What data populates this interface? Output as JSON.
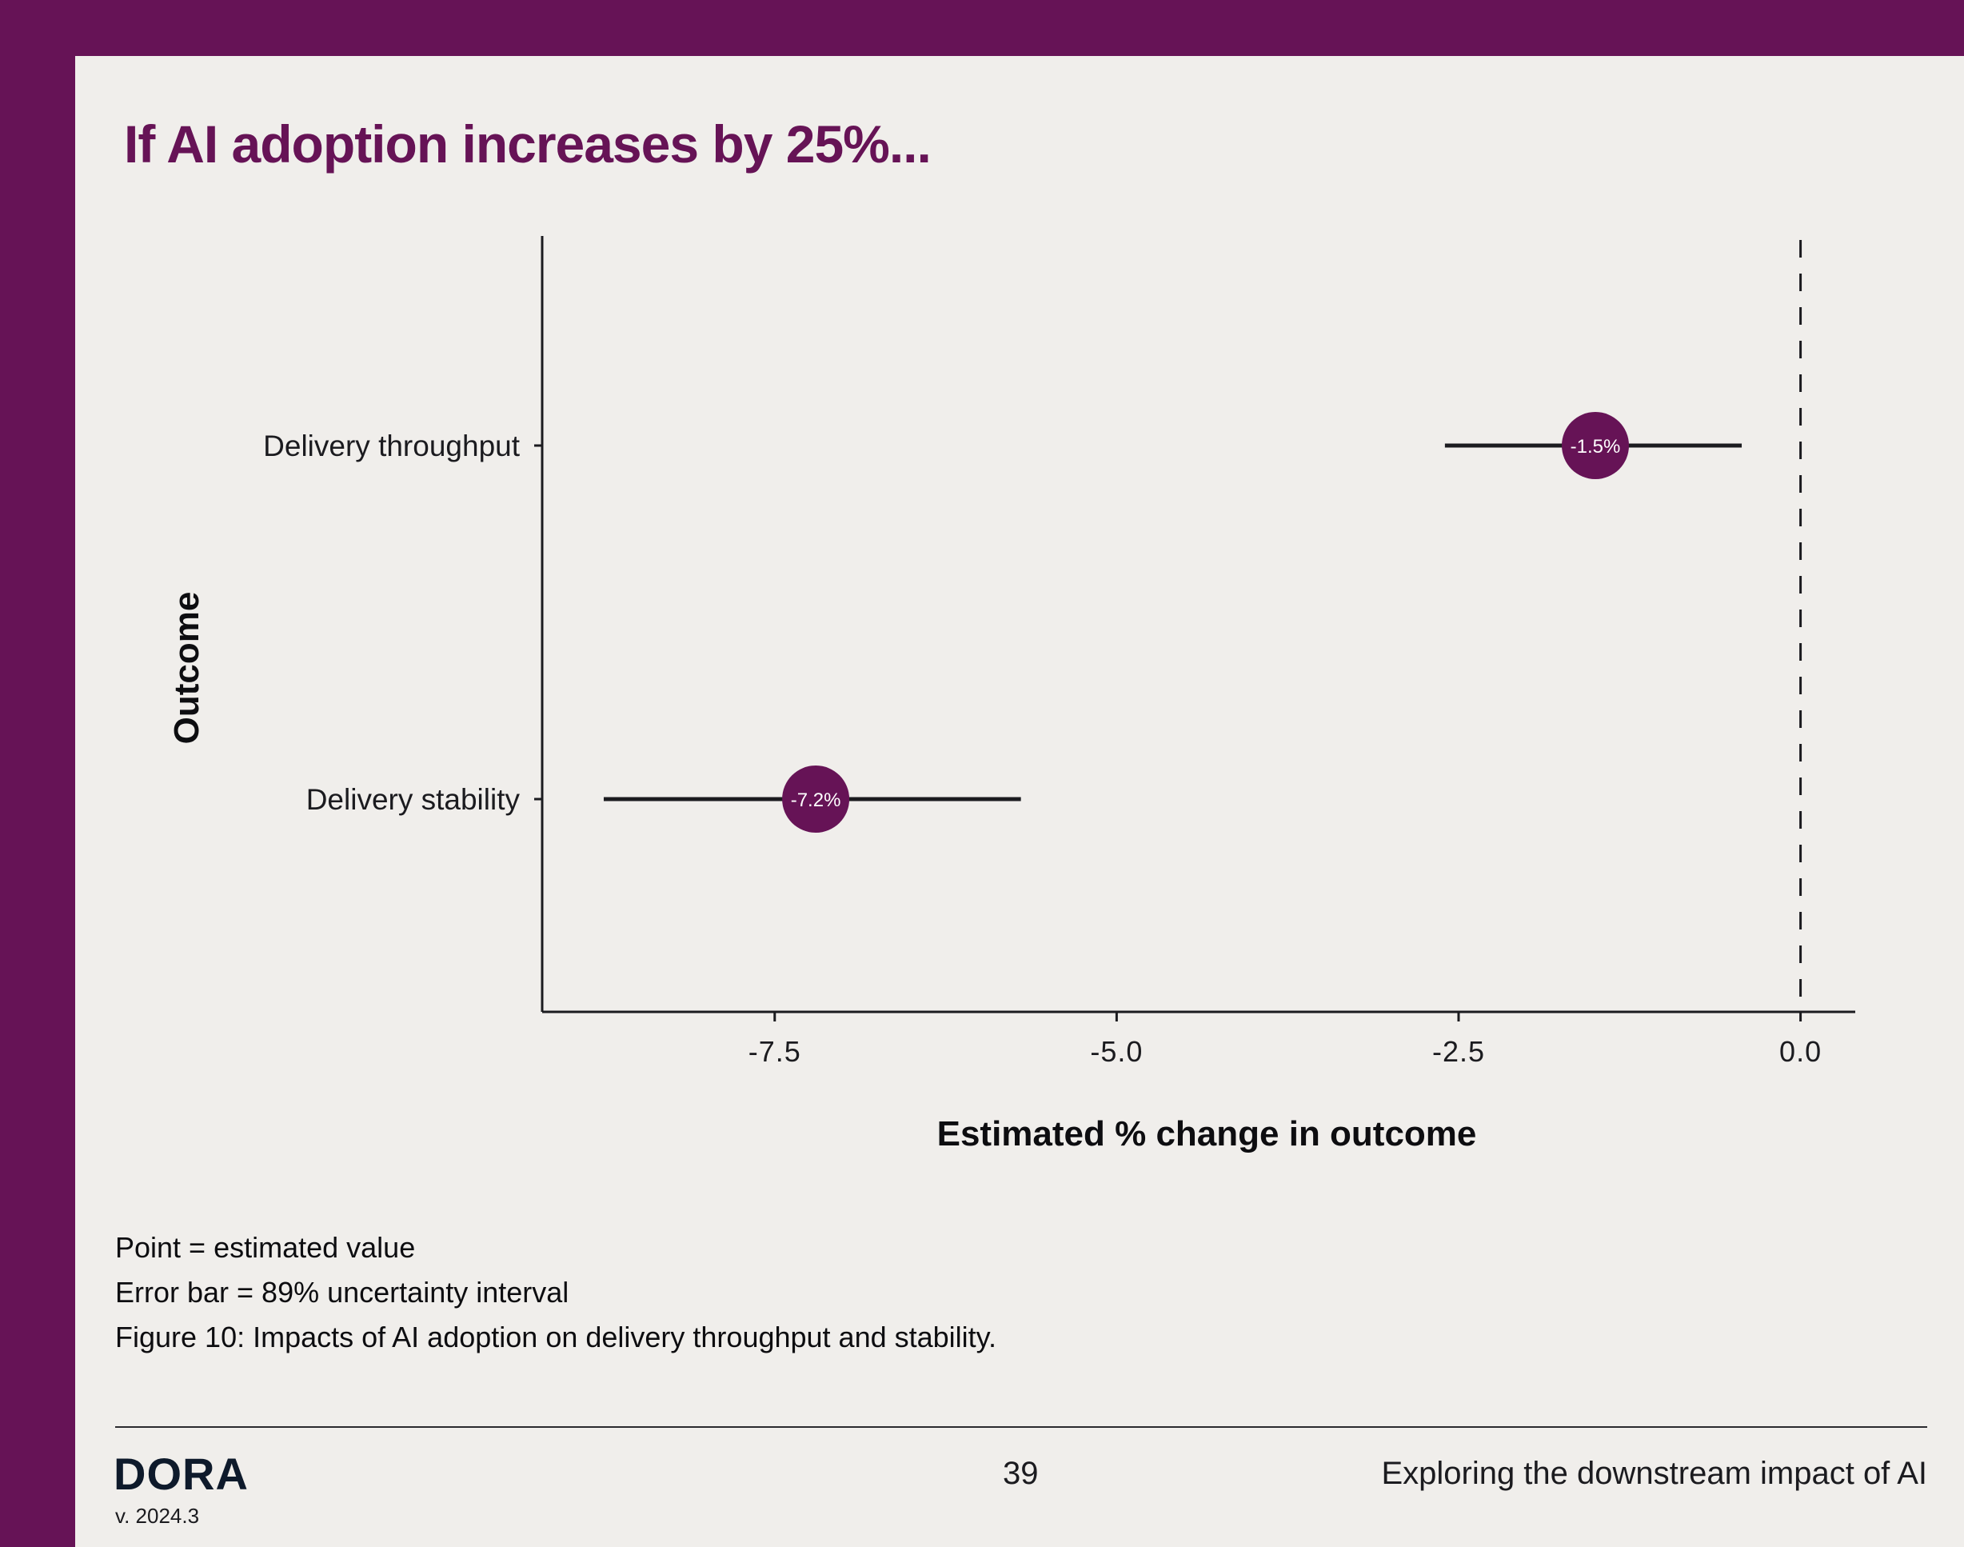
{
  "page": {
    "title": "If AI adoption increases by 25%...",
    "notes": [
      "Point = estimated value",
      "Error bar = 89% uncertainty interval",
      "Figure 10: Impacts of AI adoption on delivery throughput and stability."
    ],
    "footer": {
      "logo": "DORA",
      "version": "v. 2024.3",
      "page_number": "39",
      "section": "Exploring the downstream impact of AI"
    },
    "colors": {
      "frame": "#661356",
      "background": "#f0eeeb",
      "point": "#661356",
      "line": "#1b1b1f"
    }
  },
  "chart_data": {
    "type": "scatter",
    "xlabel": "Estimated % change in outcome",
    "ylabel": "Outcome",
    "xlim": [
      -9.2,
      0.4
    ],
    "xticks": [
      {
        "value": -7.5,
        "label": "-7.5"
      },
      {
        "value": -5.0,
        "label": "-5.0"
      },
      {
        "value": -2.5,
        "label": "-2.5"
      },
      {
        "value": 0.0,
        "label": "0.0"
      }
    ],
    "reference_line": {
      "x": 0.0,
      "style": "dashed"
    },
    "categories": [
      "Delivery throughput",
      "Delivery stability"
    ],
    "points": [
      {
        "category": "Delivery throughput",
        "estimate": -1.5,
        "low": -2.6,
        "high": -0.43,
        "label": "-1.5%"
      },
      {
        "category": "Delivery stability",
        "estimate": -7.2,
        "low": -8.75,
        "high": -5.7,
        "label": "-7.2%"
      }
    ],
    "grid": false,
    "legend": "none"
  }
}
